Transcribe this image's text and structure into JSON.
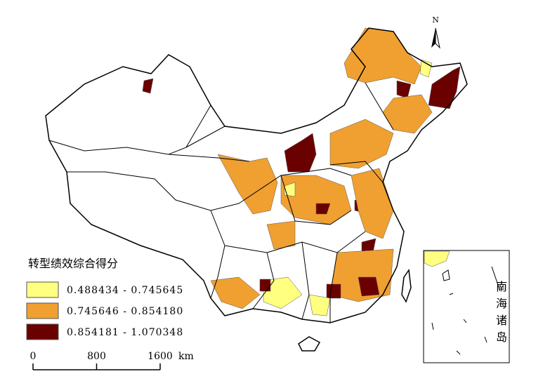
{
  "legend": {
    "title": "转型绩效综合得分",
    "items": [
      {
        "label": "0.488434 - 0.745645",
        "color": "#ffff80"
      },
      {
        "label": "0.745646 - 0.854180",
        "color": "#f0a030"
      },
      {
        "label": "0.854181 - 1.070348",
        "color": "#6b0000"
      }
    ]
  },
  "scale": {
    "ticks": [
      0,
      800,
      1600
    ],
    "unit": "km"
  },
  "north": "N",
  "inset": {
    "label": "南海诸岛"
  }
}
